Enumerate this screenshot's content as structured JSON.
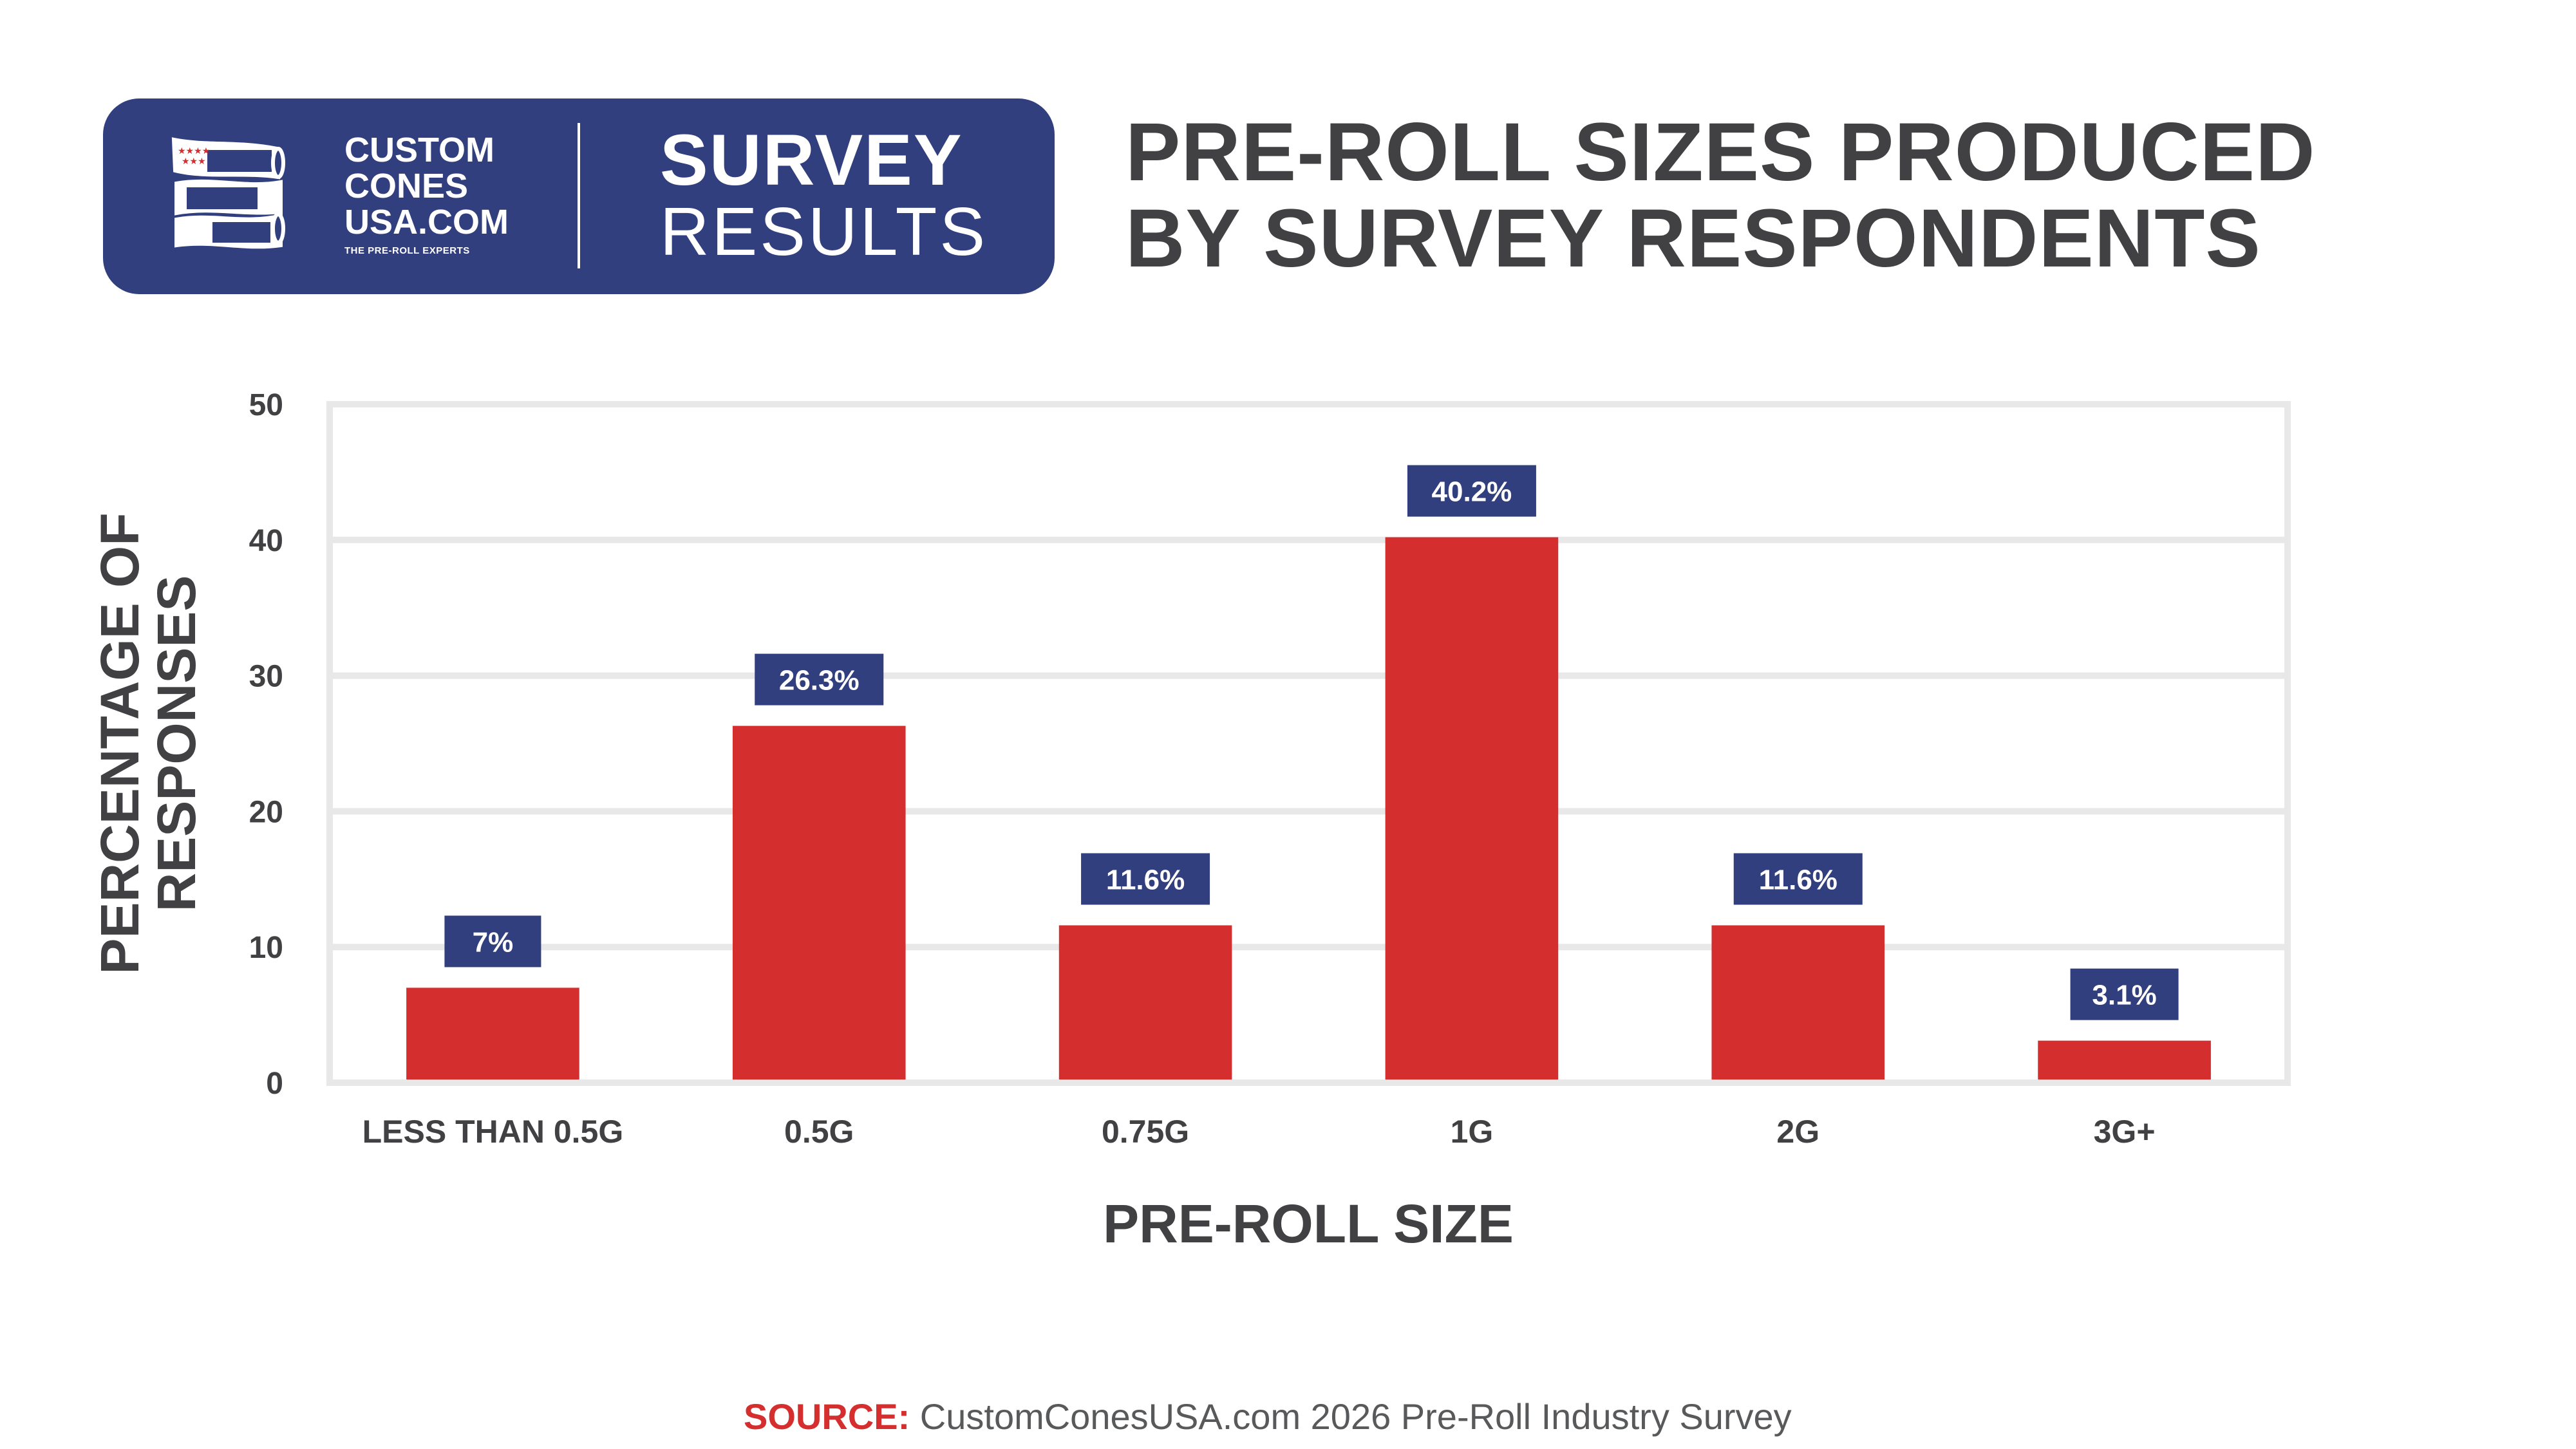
{
  "header": {
    "brand_lines": [
      "CUSTOM",
      "CONES",
      "USA.COM"
    ],
    "brand_tagline": "THE PRE-ROLL EXPERTS",
    "badge_word1": "SURVEY",
    "badge_word2": "RESULTS",
    "title_line1": "PRE-ROLL SIZES PRODUCED",
    "title_line2": "BY SURVEY RESPONDENTS"
  },
  "source": {
    "label": "SOURCE:",
    "text": " CustomConesUSA.com 2026 Pre-Roll Industry Survey"
  },
  "colors": {
    "brand_navy": "#323f7e",
    "bar_red": "#d52e2e",
    "text_dark": "#414042",
    "grid": "#e8e8e8"
  },
  "chart_data": {
    "type": "bar",
    "title": "PRE-ROLL SIZES PRODUCED BY SURVEY RESPONDENTS",
    "xlabel": "PRE-ROLL SIZE",
    "ylabel": "PERCENTAGE OF RESPONSES",
    "ylabel_lines": [
      "PERCENTAGE OF",
      "RESPONSES"
    ],
    "categories": [
      "LESS THAN 0.5G",
      "0.5G",
      "0.75G",
      "1G",
      "2G",
      "3G+"
    ],
    "values": [
      7,
      26.3,
      11.6,
      40.2,
      11.6,
      3.1
    ],
    "data_labels": [
      "7%",
      "26.3%",
      "11.6%",
      "40.2%",
      "11.6%",
      "3.1%"
    ],
    "ylim": [
      0,
      50
    ],
    "yticks": [
      0,
      10,
      20,
      30,
      40,
      50
    ],
    "grid": true,
    "legend": "none"
  }
}
